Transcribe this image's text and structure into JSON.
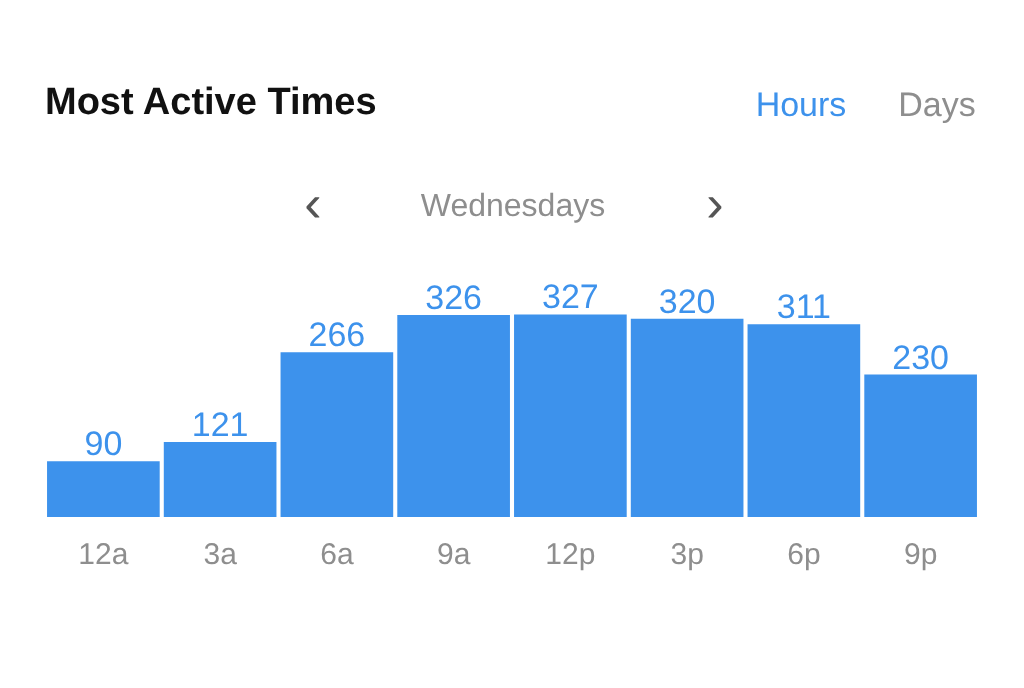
{
  "chart_data": {
    "type": "bar",
    "title": "Most Active Times",
    "subtitle": "Wednesdays",
    "annotations": [
      "Hours",
      "Days",
      "‹",
      "›"
    ],
    "categories": [
      "12a",
      "3a",
      "6a",
      "9a",
      "12p",
      "3p",
      "6p",
      "9p"
    ],
    "values": [
      90,
      121,
      266,
      326,
      327,
      320,
      311,
      230
    ],
    "color": "#3d92ec",
    "data_labels": true,
    "grid": false
  }
}
